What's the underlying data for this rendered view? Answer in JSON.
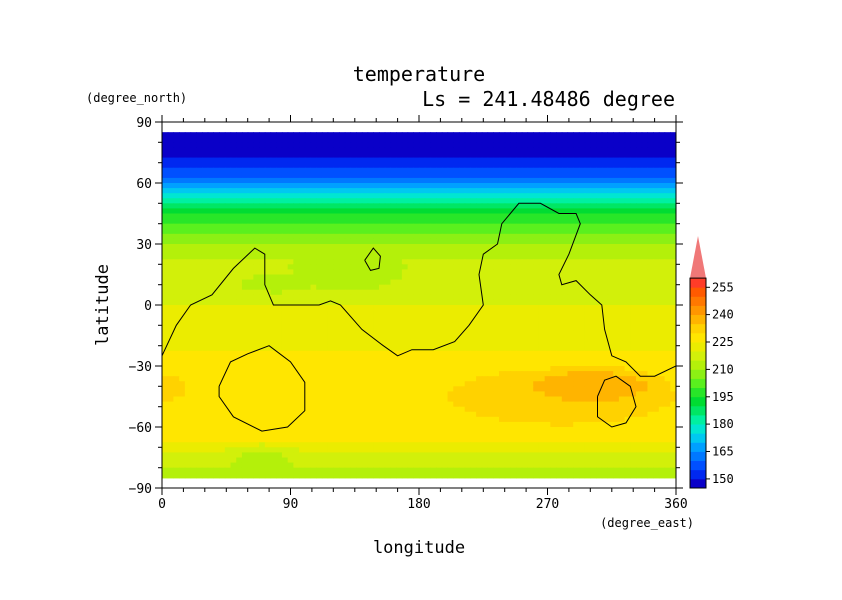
{
  "chart_data": {
    "type": "heatmap",
    "title": "temperature",
    "subtitle": "Ls = 241.48486 degree",
    "xlabel": "longitude",
    "ylabel": "latitude",
    "x_units": "(degree_east)",
    "y_units": "(degree_north)",
    "xlim": [
      0,
      360
    ],
    "ylim": [
      -90,
      90
    ],
    "x_ticks": [
      0,
      90,
      180,
      270,
      360
    ],
    "y_ticks": [
      90,
      60,
      30,
      0,
      -30,
      -60,
      -90
    ],
    "x_tick_labels": [
      "0",
      "90",
      "180",
      "270",
      "360"
    ],
    "y_tick_labels": [
      "90",
      "60",
      "30",
      "0",
      "−30",
      "−60",
      "−90"
    ],
    "data_lat_range": [
      -85,
      85
    ],
    "colorbar": {
      "levels": [
        145,
        150,
        155,
        160,
        165,
        170,
        175,
        180,
        185,
        190,
        195,
        200,
        205,
        210,
        215,
        220,
        225,
        230,
        235,
        240,
        245,
        250,
        255,
        260
      ],
      "labels": [
        "150",
        "165",
        "180",
        "195",
        "210",
        "225",
        "240",
        "255"
      ],
      "colors": [
        "#0a00c8",
        "#0028f0",
        "#0050ff",
        "#0078ff",
        "#00a0ff",
        "#00c8f0",
        "#00e6d2",
        "#00f0a0",
        "#00e664",
        "#00dc32",
        "#28e628",
        "#5af01e",
        "#8cf014",
        "#b4f00a",
        "#d2f00a",
        "#ebec00",
        "#ffe600",
        "#ffd200",
        "#ffb400",
        "#ff9600",
        "#ff7800",
        "#ff5a00",
        "#ff3c28",
        "#f07878"
      ],
      "extend": "max"
    },
    "temperature_profile": [
      {
        "lat": 85,
        "t": 147
      },
      {
        "lat": 75,
        "t": 148
      },
      {
        "lat": 68,
        "t": 153
      },
      {
        "lat": 60,
        "t": 165
      },
      {
        "lat": 53,
        "t": 180
      },
      {
        "lat": 45,
        "t": 195
      },
      {
        "lat": 35,
        "t": 205
      },
      {
        "lat": 25,
        "t": 214
      },
      {
        "lat": 10,
        "t": 219
      },
      {
        "lat": -10,
        "t": 221
      },
      {
        "lat": -25,
        "t": 226
      },
      {
        "lat": -45,
        "t": 228
      },
      {
        "lat": -65,
        "t": 226
      },
      {
        "lat": -75,
        "t": 219
      },
      {
        "lat": -85,
        "t": 210
      }
    ],
    "regions": [
      {
        "lon": 300,
        "lat": -40,
        "t": 240,
        "rlon": 55,
        "rlat": 10
      },
      {
        "lon": 280,
        "lat": -45,
        "t": 235,
        "rlon": 85,
        "rlat": 16
      },
      {
        "lon": 5,
        "lat": -40,
        "t": 235,
        "rlon": 12,
        "rlat": 7
      },
      {
        "lon": 70,
        "lat": -75,
        "t": 214,
        "rlon": 30,
        "rlat": 7
      },
      {
        "lon": 130,
        "lat": 15,
        "t": 212,
        "rlon": 45,
        "rlat": 12
      },
      {
        "lon": 80,
        "lat": 10,
        "t": 214,
        "rlon": 50,
        "rlat": 8
      }
    ],
    "contours": [
      {
        "name": "topography-outline-west",
        "points": [
          [
            0,
            -25
          ],
          [
            10,
            -10
          ],
          [
            20,
            0
          ],
          [
            35,
            5
          ],
          [
            50,
            18
          ],
          [
            65,
            28
          ],
          [
            72,
            25
          ],
          [
            72,
            10
          ],
          [
            78,
            0
          ],
          [
            95,
            0
          ],
          [
            110,
            0
          ],
          [
            118,
            2
          ],
          [
            125,
            0
          ],
          [
            140,
            -12
          ],
          [
            155,
            -20
          ],
          [
            165,
            -25
          ],
          [
            175,
            -22
          ],
          [
            190,
            -22
          ],
          [
            205,
            -18
          ],
          [
            215,
            -10
          ],
          [
            225,
            0
          ],
          [
            222,
            15
          ],
          [
            225,
            25
          ],
          [
            235,
            30
          ],
          [
            238,
            40
          ],
          [
            250,
            50
          ],
          [
            265,
            50
          ],
          [
            278,
            45
          ],
          [
            290,
            45
          ],
          [
            293,
            40
          ],
          [
            285,
            25
          ],
          [
            278,
            15
          ],
          [
            280,
            10
          ],
          [
            290,
            12
          ],
          [
            300,
            5
          ],
          [
            308,
            0
          ],
          [
            310,
            -12
          ],
          [
            315,
            -25
          ],
          [
            325,
            -28
          ],
          [
            335,
            -35
          ],
          [
            345,
            -35
          ],
          [
            360,
            -30
          ]
        ]
      },
      {
        "name": "topography-outline-island",
        "points": [
          [
            142,
            22
          ],
          [
            148,
            28
          ],
          [
            153,
            24
          ],
          [
            152,
            18
          ],
          [
            146,
            17
          ],
          [
            142,
            22
          ]
        ]
      },
      {
        "name": "crater-hellas",
        "points": [
          [
            40,
            -40
          ],
          [
            48,
            -28
          ],
          [
            60,
            -24
          ],
          [
            75,
            -20
          ],
          [
            90,
            -28
          ],
          [
            100,
            -38
          ],
          [
            100,
            -52
          ],
          [
            88,
            -60
          ],
          [
            70,
            -62
          ],
          [
            50,
            -55
          ],
          [
            40,
            -45
          ],
          [
            40,
            -40
          ]
        ]
      },
      {
        "name": "crater-argyre",
        "points": [
          [
            305,
            -45
          ],
          [
            310,
            -37
          ],
          [
            318,
            -35
          ],
          [
            328,
            -40
          ],
          [
            332,
            -50
          ],
          [
            325,
            -58
          ],
          [
            315,
            -60
          ],
          [
            305,
            -55
          ],
          [
            305,
            -45
          ]
        ]
      }
    ]
  }
}
